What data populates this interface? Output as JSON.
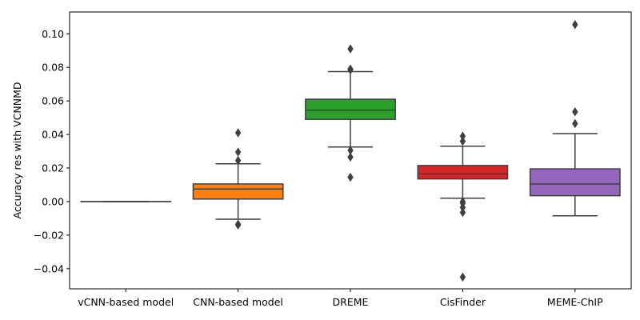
{
  "chart_data": {
    "type": "boxplot",
    "title": "",
    "xlabel": "",
    "ylabel": "Accuracy res with VCNNMD",
    "ylim": [
      -0.052,
      0.113
    ],
    "yticks": [
      -0.04,
      -0.02,
      0.0,
      0.02,
      0.04,
      0.06,
      0.08,
      0.1
    ],
    "ytick_labels": [
      "−0.04",
      "−0.02",
      "0.00",
      "0.02",
      "0.04",
      "0.06",
      "0.08",
      "0.10"
    ],
    "grid": false,
    "categories": [
      "vCNN-based model",
      "CNN-based model",
      "DREME",
      "CisFinder",
      "MEME-ChIP"
    ],
    "boxes": [
      {
        "category": "vCNN-based model",
        "color": "#ff7f0e",
        "q1": 0.0,
        "median": 0.0,
        "q3": 0.0,
        "whisker_low": 0.0,
        "whisker_high": 0.0,
        "outliers": []
      },
      {
        "category": "CNN-based model",
        "color": "#ff7f0e",
        "q1": 0.0015,
        "median": 0.0075,
        "q3": 0.0105,
        "whisker_low": -0.0105,
        "whisker_high": 0.0225,
        "outliers": [
          0.041,
          0.0295,
          0.0245,
          -0.0135,
          -0.014
        ]
      },
      {
        "category": "DREME",
        "color": "#2ca02c",
        "q1": 0.049,
        "median": 0.0545,
        "q3": 0.061,
        "whisker_low": 0.0325,
        "whisker_high": 0.0775,
        "outliers": [
          0.091,
          0.079,
          0.0785,
          0.0305,
          0.0265,
          0.0145
        ]
      },
      {
        "category": "CisFinder",
        "color": "#d62728",
        "q1": 0.0135,
        "median": 0.0165,
        "q3": 0.0215,
        "whisker_low": 0.002,
        "whisker_high": 0.033,
        "outliers": [
          0.039,
          0.036,
          0.0,
          -0.001,
          -0.0035,
          -0.0065,
          -0.045
        ]
      },
      {
        "category": "MEME-ChIP",
        "color": "#9467bd",
        "q1": 0.0035,
        "median": 0.0105,
        "q3": 0.0195,
        "whisker_low": -0.0085,
        "whisker_high": 0.0405,
        "outliers": [
          0.1055,
          0.0535,
          0.0465
        ]
      }
    ]
  }
}
